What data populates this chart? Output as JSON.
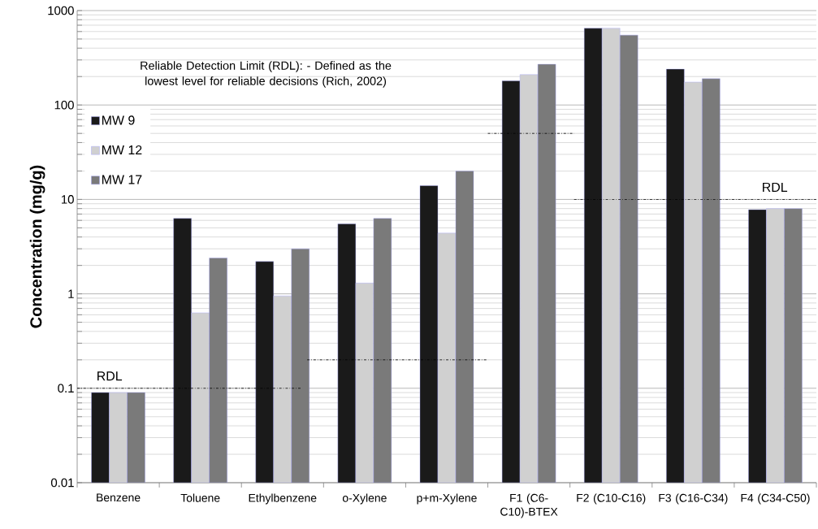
{
  "chart_data": {
    "type": "bar",
    "ylabel": "Concentration (mg/g)",
    "categories": [
      "Benzene",
      "Toluene",
      "Ethylbenzene",
      "o-Xylene",
      "p+m-Xylene",
      "F1 (C6-C10)-BTEX",
      "F2 (C10-C16)",
      "F3 (C16-C34)",
      "F4 (C34-C50)"
    ],
    "series": [
      {
        "name": "MW 9",
        "color": "#1a1a1a",
        "values": [
          0.09,
          6.3,
          2.2,
          5.5,
          14,
          180,
          650,
          240,
          7.8
        ]
      },
      {
        "name": "MW 12",
        "color": "#d0d0d0",
        "values": [
          0.09,
          0.63,
          0.95,
          1.3,
          4.4,
          210,
          650,
          175,
          8
        ]
      },
      {
        "name": "MW 17",
        "color": "#7a7a7a",
        "values": [
          0.09,
          2.4,
          3.0,
          6.3,
          20,
          270,
          550,
          190,
          8
        ]
      }
    ],
    "log": "y",
    "ylim": [
      0.01,
      1000
    ],
    "yticks": [
      0.01,
      0.1,
      1,
      10,
      100,
      1000
    ],
    "grid": "y",
    "legend": "top left",
    "ref_lines": [
      {
        "axis": "y",
        "value": 0.1,
        "label": "RDL",
        "color": "#000000"
      },
      {
        "axis": "y",
        "value": 0.2,
        "color": "#000000"
      },
      {
        "axis": "y",
        "value": 50,
        "color": "#000000"
      },
      {
        "axis": "y",
        "value": 10,
        "label": "RDL",
        "color": "#000000"
      }
    ],
    "annotations": [
      "Reliable Detection Limit (RDL): - Defined as the lowest level for reliable decisions (Rich, 2002)"
    ]
  }
}
